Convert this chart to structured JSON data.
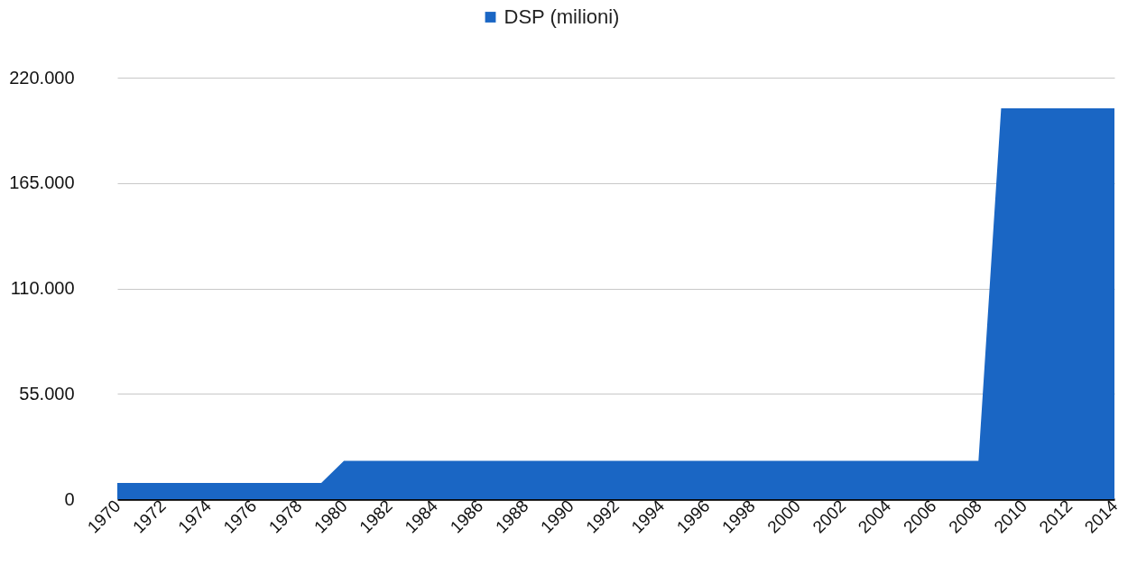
{
  "chart_data": {
    "type": "area",
    "x": [
      1970,
      1971,
      1972,
      1973,
      1974,
      1975,
      1976,
      1977,
      1978,
      1979,
      1980,
      1981,
      1982,
      1983,
      1984,
      1985,
      1986,
      1987,
      1988,
      1989,
      1990,
      1991,
      1992,
      1993,
      1994,
      1995,
      1996,
      1997,
      1998,
      1999,
      2000,
      2001,
      2002,
      2003,
      2004,
      2005,
      2006,
      2007,
      2008,
      2009,
      2010,
      2011,
      2012,
      2013,
      2014
    ],
    "series": [
      {
        "name": "DSP (milioni)",
        "color": "#1a66c4",
        "values": [
          8500,
          8500,
          8500,
          8500,
          8500,
          8500,
          8500,
          8500,
          8500,
          8500,
          20000,
          20000,
          20000,
          20000,
          20000,
          20000,
          20000,
          20000,
          20000,
          20000,
          20000,
          20000,
          20000,
          20000,
          20000,
          20000,
          20000,
          20000,
          20000,
          20000,
          20000,
          20000,
          20000,
          20000,
          20000,
          20000,
          20000,
          20000,
          20000,
          204000,
          204000,
          204000,
          204000,
          204000,
          204000
        ]
      }
    ],
    "xlim": [
      1970,
      2014
    ],
    "xticks": [
      1970,
      1972,
      1974,
      1976,
      1978,
      1980,
      1982,
      1984,
      1986,
      1988,
      1990,
      1992,
      1994,
      1996,
      1998,
      2000,
      2002,
      2004,
      2006,
      2008,
      2010,
      2012,
      2014
    ],
    "ylim": [
      0,
      220000
    ],
    "yticks": [
      {
        "value": 0,
        "label": "0"
      },
      {
        "value": 55000,
        "label": "55.000"
      },
      {
        "value": 110000,
        "label": "110.000"
      },
      {
        "value": 165000,
        "label": "165.000"
      },
      {
        "value": 220000,
        "label": "220.000"
      }
    ],
    "grid": "y",
    "legend": "top"
  }
}
